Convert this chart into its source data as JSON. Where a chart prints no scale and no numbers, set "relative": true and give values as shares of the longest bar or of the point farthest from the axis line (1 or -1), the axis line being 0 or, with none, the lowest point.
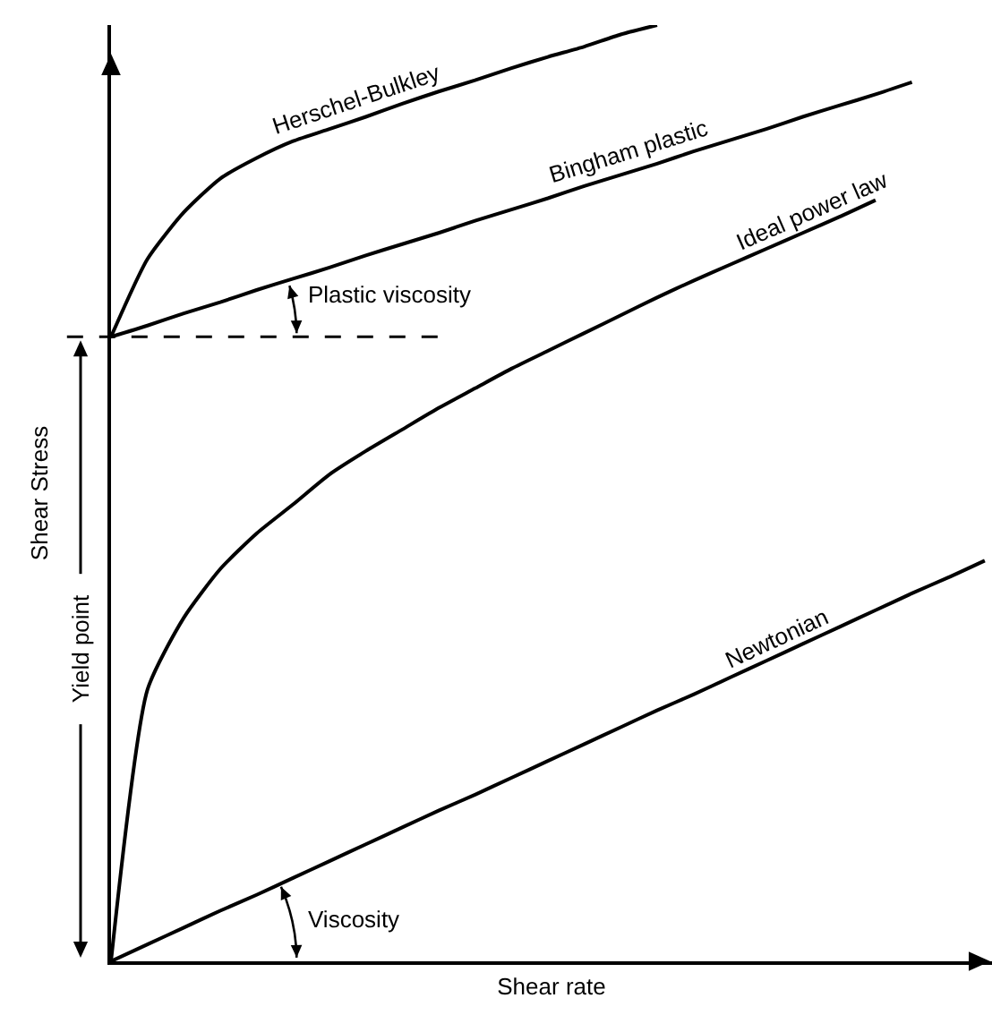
{
  "chart_data": {
    "type": "line",
    "relative": true,
    "xlabel": "Shear rate",
    "ylabel": "Shear Stress",
    "categories": [
      null,
      null,
      null,
      null,
      null,
      null,
      null,
      null,
      null,
      null,
      null,
      null,
      null,
      null,
      null,
      null,
      null,
      null,
      null,
      null,
      null,
      null,
      null,
      null,
      null
    ],
    "series": [
      {
        "name": "Herschel-Bulkley",
        "color": "#000000",
        "values": [
          0.667,
          0.75,
          0.8,
          0.836,
          0.858,
          0.876,
          0.889,
          0.902,
          0.916,
          0.929,
          0.941,
          0.954,
          0.966,
          0.977,
          0.99,
          1.0,
          null,
          null,
          null,
          null,
          null,
          null,
          null,
          null,
          null
        ]
      },
      {
        "name": "Bingham plastic",
        "color": "#000000",
        "values": [
          0.667,
          0.679,
          0.692,
          0.704,
          0.717,
          0.729,
          0.741,
          0.754,
          0.766,
          0.778,
          0.791,
          0.803,
          0.815,
          0.828,
          0.84,
          0.852,
          0.865,
          0.877,
          0.889,
          0.902,
          0.914,
          0.926,
          0.939,
          null,
          null
        ]
      },
      {
        "name": "Ideal power law",
        "color": "#000000",
        "values": [
          0,
          0.29,
          0.367,
          0.419,
          0.457,
          0.488,
          0.52,
          0.545,
          0.568,
          0.591,
          0.612,
          0.633,
          0.652,
          0.671,
          0.69,
          0.709,
          0.727,
          0.744,
          0.761,
          0.778,
          0.795,
          0.813,
          null,
          null,
          null
        ]
      },
      {
        "name": "Newtonian",
        "color": "#000000",
        "values": [
          0,
          0.018,
          0.036,
          0.054,
          0.071,
          0.089,
          0.107,
          0.125,
          0.143,
          0.161,
          0.178,
          0.196,
          0.214,
          0.232,
          0.25,
          0.268,
          0.285,
          0.303,
          0.321,
          0.339,
          0.357,
          0.375,
          0.393,
          0.41,
          0.428
        ]
      }
    ],
    "ref_lines": [
      {
        "axis": "y",
        "value": 0.667,
        "line_style": "dashed"
      }
    ],
    "annotations": [
      "Plastic viscosity",
      "Viscosity",
      "Yield point"
    ]
  }
}
